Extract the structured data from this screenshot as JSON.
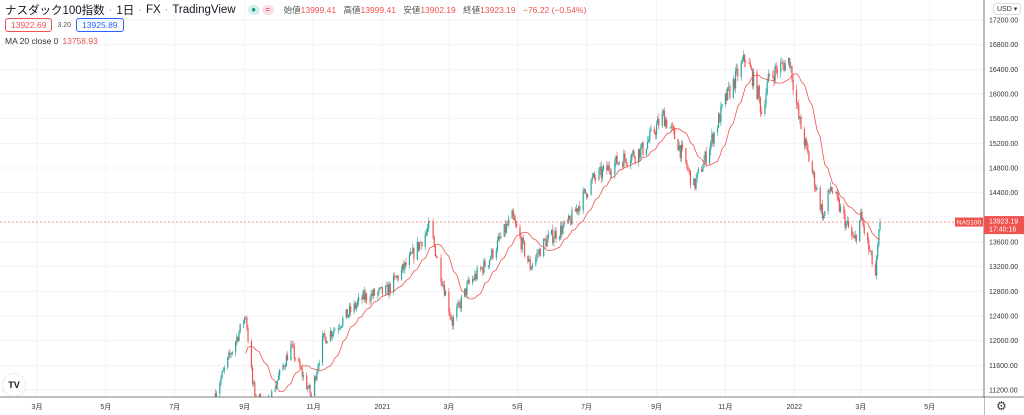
{
  "header": {
    "title": "ナスダック100指数",
    "interval": "1日",
    "exchange": "FX",
    "source": "TradingView",
    "ohlc": [
      {
        "label": "始値",
        "value": "13999.41"
      },
      {
        "label": "高値",
        "value": "13999.41"
      },
      {
        "label": "安値",
        "value": "13902.19"
      },
      {
        "label": "終値",
        "value": "13923.19"
      }
    ],
    "change": "−76.22 (−0.54%)"
  },
  "quote": {
    "bid": "13922.69",
    "spread": "3.20",
    "ask": "13925.89"
  },
  "indicator": {
    "label": "MA 20 close 0",
    "value": "13758.93"
  },
  "currency": "USD",
  "logo": "TV",
  "colors": {
    "up": "#26a69a",
    "down": "#ef5350",
    "ma": "#ef5350",
    "grid": "#f0f3fa"
  },
  "chart_data": {
    "type": "candlestick",
    "symbol_tag": "NAS100",
    "last_price": "13923.19",
    "last_price_value": 13923.19,
    "countdown": "17:40:16",
    "y_ticks": [
      "17200.00",
      "16800.00",
      "16400.00",
      "16000.00",
      "15600.00",
      "15200.00",
      "14800.00",
      "14400.00",
      "13600.00",
      "13200.00",
      "12800.00",
      "12400.00",
      "12000.00",
      "11600.00",
      "11200.00"
    ],
    "ylim": [
      11200,
      17200
    ],
    "x_ticks": [
      {
        "label": "3月",
        "date": "2020-03-01"
      },
      {
        "label": "5月",
        "date": "2020-05-01"
      },
      {
        "label": "7月",
        "date": "2020-07-01"
      },
      {
        "label": "9月",
        "date": "2020-09-01"
      },
      {
        "label": "11月",
        "date": "2020-11-01"
      },
      {
        "label": "2021",
        "date": "2021-01-01"
      },
      {
        "label": "3月",
        "date": "2021-03-01"
      },
      {
        "label": "5月",
        "date": "2021-05-01"
      },
      {
        "label": "7月",
        "date": "2021-07-01"
      },
      {
        "label": "9月",
        "date": "2021-09-01"
      },
      {
        "label": "11月",
        "date": "2021-11-01"
      },
      {
        "label": "2022",
        "date": "2022-01-01"
      },
      {
        "label": "3月",
        "date": "2022-03-01"
      },
      {
        "label": "5月",
        "date": "2022-05-01"
      }
    ],
    "ma_period": 20,
    "close_anchors": [
      [
        "2020-08-06",
        11150
      ],
      [
        "2020-09-02",
        12420
      ],
      [
        "2020-09-08",
        11300
      ],
      [
        "2020-09-11",
        11100
      ],
      [
        "2020-09-21",
        10950
      ],
      [
        "2020-10-12",
        11900
      ],
      [
        "2020-10-30",
        11100
      ],
      [
        "2020-11-09",
        12000
      ],
      [
        "2020-11-25",
        12300
      ],
      [
        "2020-12-15",
        12700
      ],
      [
        "2021-01-05",
        12800
      ],
      [
        "2021-01-25",
        13300
      ],
      [
        "2021-02-12",
        13850
      ],
      [
        "2021-03-04",
        12300
      ],
      [
        "2021-03-18",
        12900
      ],
      [
        "2021-04-05",
        13300
      ],
      [
        "2021-04-26",
        14000
      ],
      [
        "2021-05-12",
        13200
      ],
      [
        "2021-05-25",
        13600
      ],
      [
        "2021-06-15",
        13900
      ],
      [
        "2021-07-06",
        14600
      ],
      [
        "2021-07-28",
        14900
      ],
      [
        "2021-08-20",
        15100
      ],
      [
        "2021-09-07",
        15650
      ],
      [
        "2021-09-20",
        15200
      ],
      [
        "2021-10-04",
        14500
      ],
      [
        "2021-10-15",
        15000
      ],
      [
        "2021-11-01",
        15900
      ],
      [
        "2021-11-19",
        16600
      ],
      [
        "2021-11-30",
        16000
      ],
      [
        "2021-12-03",
        15700
      ],
      [
        "2021-12-10",
        16300
      ],
      [
        "2021-12-28",
        16550
      ],
      [
        "2022-01-05",
        15600
      ],
      [
        "2022-01-27",
        14000
      ],
      [
        "2022-02-02",
        14500
      ],
      [
        "2022-02-23",
        13600
      ],
      [
        "2022-03-01",
        14000
      ],
      [
        "2022-03-14",
        13050
      ],
      [
        "2022-03-18",
        13923.19
      ]
    ]
  }
}
